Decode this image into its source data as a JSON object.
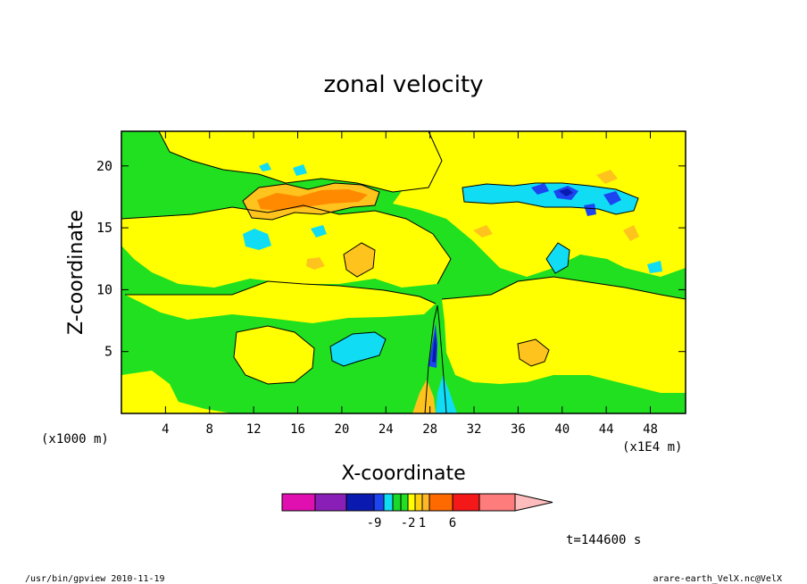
{
  "chart_data": {
    "type": "heatmap",
    "title": "zonal velocity",
    "xlabel": "X-coordinate",
    "ylabel": "Z-coordinate",
    "x_unit_label": "(x1E4 m)",
    "y_unit_label": "(x1000 m)",
    "x_ticks": [
      4,
      8,
      12,
      16,
      20,
      24,
      28,
      32,
      36,
      40,
      44,
      48
    ],
    "y_ticks": [
      5,
      10,
      15,
      20
    ],
    "xlim": [
      0,
      51.2
    ],
    "ylim": [
      0,
      22.8
    ],
    "colorbar": {
      "colors": [
        "#e010b0",
        "#8a1fb8",
        "#0a1ab0",
        "#1c44f0",
        "#10dcf4",
        "#18d828",
        "#20e020",
        "#ffff00",
        "#ffd010",
        "#ffb828",
        "#ff6a00",
        "#f41818",
        "#ff7c7c",
        "#ffbcbc"
      ],
      "tick_labels": [
        {
          "after_box": 2,
          "text": "-9"
        },
        {
          "after_box": 6,
          "text": "-2"
        },
        {
          "after_box": 8,
          "text": "1"
        },
        {
          "after_box": 10,
          "text": "6"
        }
      ]
    },
    "palette": {
      "green": "#20e020",
      "yellow": "#ffff00",
      "orange": "#ffc31e",
      "darkorange": "#ff8a00",
      "cyan": "#10dcf4",
      "blue": "#1c44f0",
      "navy": "#0a1ab0"
    }
  },
  "annotations": {
    "time": "t=144600 s",
    "footer_left": "/usr/bin/gpview  2010-11-19",
    "footer_right": "arare-earth_VelX.nc@VelX"
  }
}
